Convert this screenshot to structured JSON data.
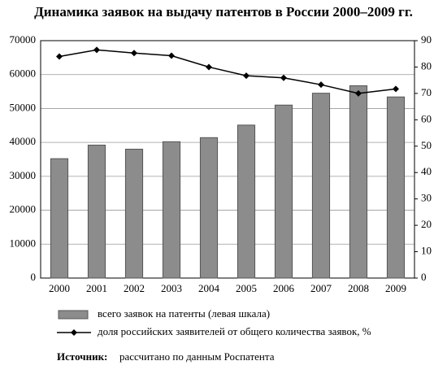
{
  "chart_data": {
    "type": "bar_line",
    "title": "Динамика заявок на выдачу патентов в России 2000–2009 гг.",
    "categories": [
      "2000",
      "2001",
      "2002",
      "2003",
      "2004",
      "2005",
      "2006",
      "2007",
      "2008",
      "2009"
    ],
    "series": [
      {
        "name": "всего заявок на патенты (левая шкала)",
        "type": "bar",
        "color": "#8c8c8c",
        "values": [
          35200,
          39200,
          38000,
          40200,
          41400,
          45100,
          51000,
          54500,
          56700,
          53400
        ]
      },
      {
        "name": "доля российских заявителей от общего количества заявок, %",
        "type": "line",
        "axis": "y2",
        "color": "#000000",
        "values": [
          84,
          86.5,
          85.3,
          84.3,
          80,
          76.7,
          75.9,
          73.3,
          70,
          71.7
        ]
      }
    ],
    "ylim": [
      0,
      70000
    ],
    "yticks": [
      0,
      10000,
      20000,
      30000,
      40000,
      50000,
      60000,
      70000
    ],
    "y2lim": [
      0,
      90
    ],
    "y2ticks": [
      0,
      10,
      20,
      30,
      40,
      50,
      60,
      70,
      80,
      90
    ],
    "grid": true,
    "source_label": "Источник:",
    "source_text": "рассчитано по данным Роспатента"
  }
}
